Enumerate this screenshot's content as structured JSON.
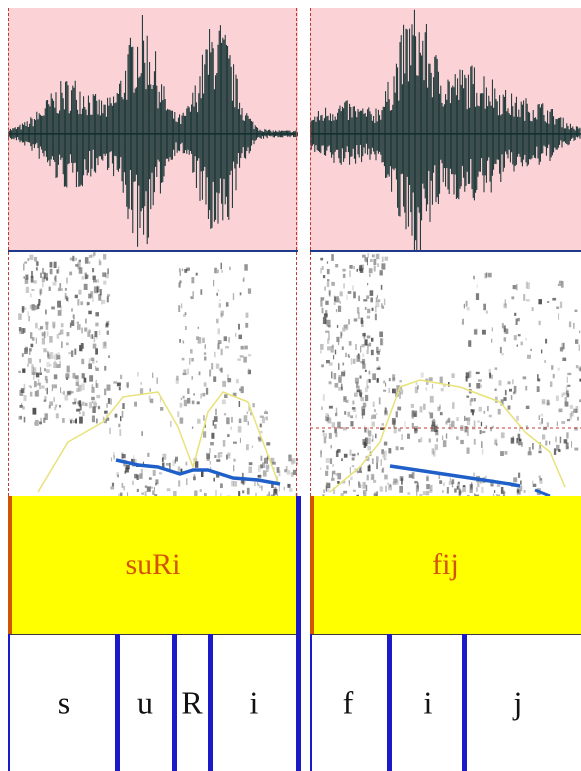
{
  "words": [
    {
      "label": "suRi",
      "phones": [
        "s",
        "u",
        "R",
        "i"
      ]
    },
    {
      "label": "fij",
      "phones": [
        "f",
        "i",
        "j"
      ]
    }
  ],
  "colors": {
    "waveform_bg": "#fbd2d6",
    "waveform": "#0f2e2e",
    "word_tier_bg": "#ffff00",
    "word_text": "#d35400",
    "boundary": "#1a1ac8",
    "pitch": "#1f5fc8",
    "intensity": "#e8e27a",
    "guide": "#c0392b"
  }
}
